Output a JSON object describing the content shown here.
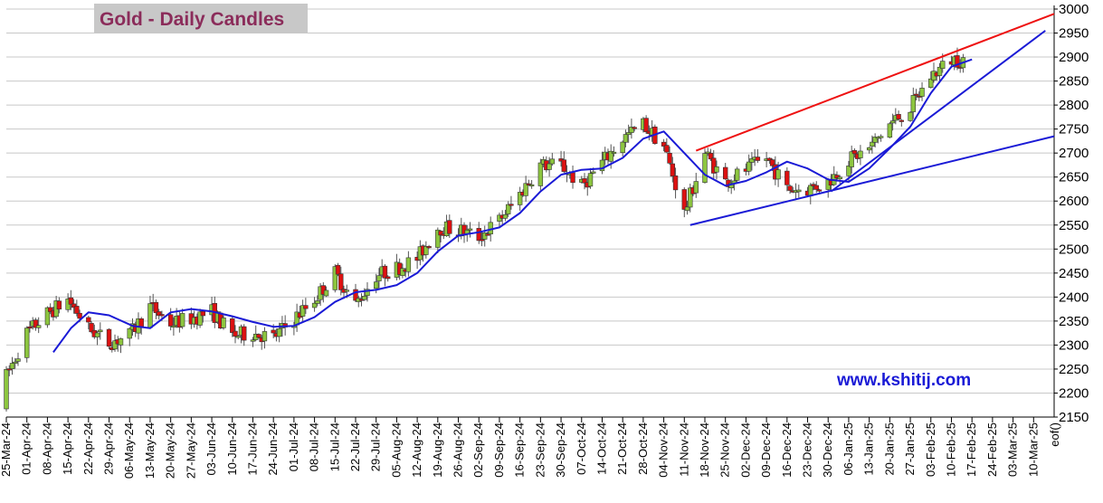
{
  "chart_data": {
    "type": "candlestick",
    "title": "Gold - Daily Candles",
    "watermark": "www.kshitij.com",
    "axis_end_label": "eof()",
    "ylim": [
      2150,
      3000
    ],
    "yticks": [
      2150,
      2200,
      2250,
      2300,
      2350,
      2400,
      2450,
      2500,
      2550,
      2600,
      2650,
      2700,
      2750,
      2800,
      2850,
      2900,
      2950,
      3000
    ],
    "y_axis_side": "right",
    "grid": "horizontal",
    "x_range": [
      "2024-03-25",
      "2025-03-17"
    ],
    "x_tick_labels": [
      "25-Mar-24",
      "01-Apr-24",
      "08-Apr-24",
      "15-Apr-24",
      "22-Apr-24",
      "29-Apr-24",
      "06-May-24",
      "13-May-24",
      "20-May-24",
      "27-May-24",
      "03-Jun-24",
      "10-Jun-24",
      "17-Jun-24",
      "24-Jun-24",
      "01-Jul-24",
      "08-Jul-24",
      "15-Jul-24",
      "22-Jul-24",
      "29-Jul-24",
      "05-Aug-24",
      "12-Aug-24",
      "19-Aug-24",
      "26-Aug-24",
      "02-Sep-24",
      "09-Sep-24",
      "16-Sep-24",
      "23-Sep-24",
      "30-Sep-24",
      "07-Oct-24",
      "14-Oct-24",
      "21-Oct-24",
      "28-Oct-24",
      "04-Nov-24",
      "11-Nov-24",
      "18-Nov-24",
      "25-Nov-24",
      "02-Dec-24",
      "09-Dec-24",
      "16-Dec-24",
      "23-Dec-24",
      "30-Dec-24",
      "06-Jan-25",
      "13-Jan-25",
      "20-Jan-25",
      "27-Jan-25",
      "03-Feb-25",
      "10-Feb-25",
      "17-Feb-25",
      "24-Feb-25",
      "03-Mar-25",
      "10-Mar-25"
    ],
    "tick_step_days": 7,
    "colors": {
      "up": "#8dc63f",
      "down": "#dd1111",
      "wick": "#555555",
      "moving_average": "#1a1ad6",
      "upper_trendline": "#ee1111",
      "lower_trendline": "#1a1ad6",
      "grid": "#c8c8c8"
    },
    "weekly_closes": [
      {
        "week": "25-Mar-24",
        "close": 2235
      },
      {
        "week": "01-Apr-24",
        "close": 2325
      },
      {
        "week": "08-Apr-24",
        "close": 2365
      },
      {
        "week": "15-Apr-24",
        "close": 2395
      },
      {
        "week": "22-Apr-24",
        "close": 2335
      },
      {
        "week": "29-Apr-24",
        "close": 2305
      },
      {
        "week": "06-May-24",
        "close": 2320
      },
      {
        "week": "13-May-24",
        "close": 2380
      },
      {
        "week": "20-May-24",
        "close": 2345
      },
      {
        "week": "27-May-24",
        "close": 2355
      },
      {
        "week": "03-Jun-24",
        "close": 2370
      },
      {
        "week": "10-Jun-24",
        "close": 2320
      },
      {
        "week": "17-Jun-24",
        "close": 2325
      },
      {
        "week": "24-Jun-24",
        "close": 2315
      },
      {
        "week": "01-Jul-24",
        "close": 2355
      },
      {
        "week": "08-Jul-24",
        "close": 2395
      },
      {
        "week": "15-Jul-24",
        "close": 2450
      },
      {
        "week": "22-Jul-24",
        "close": 2385
      },
      {
        "week": "29-Jul-24",
        "close": 2445
      },
      {
        "week": "05-Aug-24",
        "close": 2460
      },
      {
        "week": "12-Aug-24",
        "close": 2480
      },
      {
        "week": "19-Aug-24",
        "close": 2545
      },
      {
        "week": "26-Aug-24",
        "close": 2540
      },
      {
        "week": "02-Sep-24",
        "close": 2525
      },
      {
        "week": "09-Sep-24",
        "close": 2560
      },
      {
        "week": "16-Sep-24",
        "close": 2615
      },
      {
        "week": "23-Sep-24",
        "close": 2675
      },
      {
        "week": "30-Sep-24",
        "close": 2675
      },
      {
        "week": "07-Oct-24",
        "close": 2630
      },
      {
        "week": "14-Oct-24",
        "close": 2680
      },
      {
        "week": "21-Oct-24",
        "close": 2730
      },
      {
        "week": "28-Oct-24",
        "close": 2760
      },
      {
        "week": "04-Nov-24",
        "close": 2715
      },
      {
        "week": "11-Nov-24",
        "close": 2575
      },
      {
        "week": "18-Nov-24",
        "close": 2700
      },
      {
        "week": "25-Nov-24",
        "close": 2640
      },
      {
        "week": "02-Dec-24",
        "close": 2665
      },
      {
        "week": "09-Dec-24",
        "close": 2690
      },
      {
        "week": "16-Dec-24",
        "close": 2625
      },
      {
        "week": "23-Dec-24",
        "close": 2625
      },
      {
        "week": "30-Dec-24",
        "close": 2640
      },
      {
        "week": "06-Jan-25",
        "close": 2685
      },
      {
        "week": "13-Jan-25",
        "close": 2710
      },
      {
        "week": "20-Jan-25",
        "close": 2760
      },
      {
        "week": "27-Jan-25",
        "close": 2795
      },
      {
        "week": "03-Feb-25",
        "close": 2860
      },
      {
        "week": "10-Feb-25",
        "close": 2895
      }
    ],
    "moving_average": [
      {
        "date": "2024-04-10",
        "value": 2285
      },
      {
        "date": "2024-04-16",
        "value": 2335
      },
      {
        "date": "2024-04-22",
        "value": 2368
      },
      {
        "date": "2024-04-29",
        "value": 2362
      },
      {
        "date": "2024-05-07",
        "value": 2340
      },
      {
        "date": "2024-05-13",
        "value": 2335
      },
      {
        "date": "2024-05-20",
        "value": 2368
      },
      {
        "date": "2024-05-27",
        "value": 2375
      },
      {
        "date": "2024-06-03",
        "value": 2370
      },
      {
        "date": "2024-06-10",
        "value": 2360
      },
      {
        "date": "2024-06-17",
        "value": 2348
      },
      {
        "date": "2024-06-24",
        "value": 2338
      },
      {
        "date": "2024-07-01",
        "value": 2340
      },
      {
        "date": "2024-07-08",
        "value": 2358
      },
      {
        "date": "2024-07-15",
        "value": 2390
      },
      {
        "date": "2024-07-22",
        "value": 2410
      },
      {
        "date": "2024-07-29",
        "value": 2415
      },
      {
        "date": "2024-08-05",
        "value": 2425
      },
      {
        "date": "2024-08-12",
        "value": 2450
      },
      {
        "date": "2024-08-19",
        "value": 2495
      },
      {
        "date": "2024-08-26",
        "value": 2528
      },
      {
        "date": "2024-09-02",
        "value": 2535
      },
      {
        "date": "2024-09-09",
        "value": 2545
      },
      {
        "date": "2024-09-16",
        "value": 2575
      },
      {
        "date": "2024-09-23",
        "value": 2620
      },
      {
        "date": "2024-09-30",
        "value": 2655
      },
      {
        "date": "2024-10-07",
        "value": 2665
      },
      {
        "date": "2024-10-14",
        "value": 2668
      },
      {
        "date": "2024-10-21",
        "value": 2690
      },
      {
        "date": "2024-10-28",
        "value": 2730
      },
      {
        "date": "2024-11-04",
        "value": 2745
      },
      {
        "date": "2024-11-11",
        "value": 2700
      },
      {
        "date": "2024-11-18",
        "value": 2655
      },
      {
        "date": "2024-11-25",
        "value": 2632
      },
      {
        "date": "2024-12-02",
        "value": 2642
      },
      {
        "date": "2024-12-09",
        "value": 2660
      },
      {
        "date": "2024-12-16",
        "value": 2682
      },
      {
        "date": "2024-12-23",
        "value": 2668
      },
      {
        "date": "2024-12-30",
        "value": 2645
      },
      {
        "date": "2025-01-06",
        "value": 2640
      },
      {
        "date": "2025-01-13",
        "value": 2668
      },
      {
        "date": "2025-01-20",
        "value": 2710
      },
      {
        "date": "2025-01-27",
        "value": 2755
      },
      {
        "date": "2025-02-03",
        "value": 2825
      },
      {
        "date": "2025-02-10",
        "value": 2880
      },
      {
        "date": "2025-02-17",
        "value": 2895
      }
    ],
    "trendlines": [
      {
        "role": "upper-resistance",
        "color": "upper_trendline",
        "from": {
          "date": "2024-11-15",
          "value": 2705
        },
        "to": {
          "date": "2025-03-17",
          "value": 2990
        }
      },
      {
        "role": "lower-support",
        "color": "lower_trendline",
        "from": {
          "date": "2024-11-13",
          "value": 2550
        },
        "to": {
          "date": "2025-03-17",
          "value": 2735
        }
      },
      {
        "role": "steep-support",
        "color": "lower_trendline",
        "from": {
          "date": "2024-12-31",
          "value": 2620
        },
        "to": {
          "date": "2025-03-14",
          "value": 2955
        }
      }
    ]
  }
}
